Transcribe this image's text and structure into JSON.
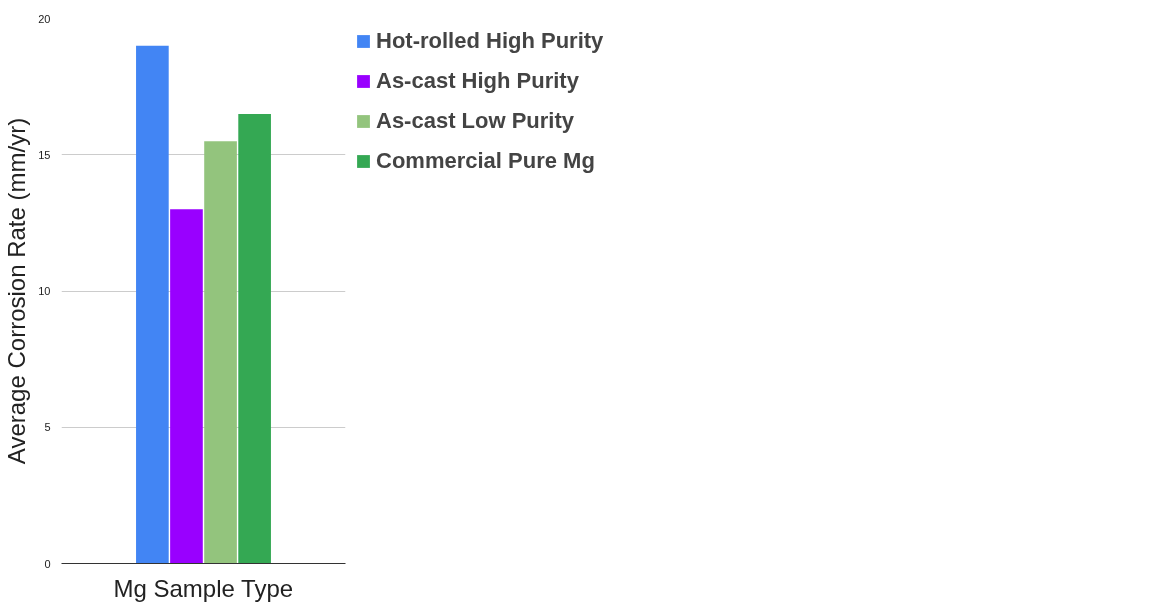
{
  "chart_data": {
    "type": "bar",
    "xlabel": "Mg Sample Type",
    "ylabel": "Average Corrosion Rate (mm/yr)",
    "categories": [
      null
    ],
    "series": [
      {
        "name": "Hot-rolled High Purity",
        "color": "#4285f4",
        "values": [
          19
        ]
      },
      {
        "name": "As-cast High Purity",
        "color": "#9900ff",
        "values": [
          13
        ]
      },
      {
        "name": "As-cast Low Purity",
        "color": "#93c47d",
        "values": [
          15.5
        ]
      },
      {
        "name": "Commercial Pure Mg",
        "color": "#34a853",
        "values": [
          16.5
        ]
      }
    ],
    "ylim": [
      0,
      20
    ],
    "yticks": [
      0,
      5,
      10,
      15,
      20
    ],
    "grid": "y",
    "legend": "right",
    "tick_labels": "y"
  }
}
